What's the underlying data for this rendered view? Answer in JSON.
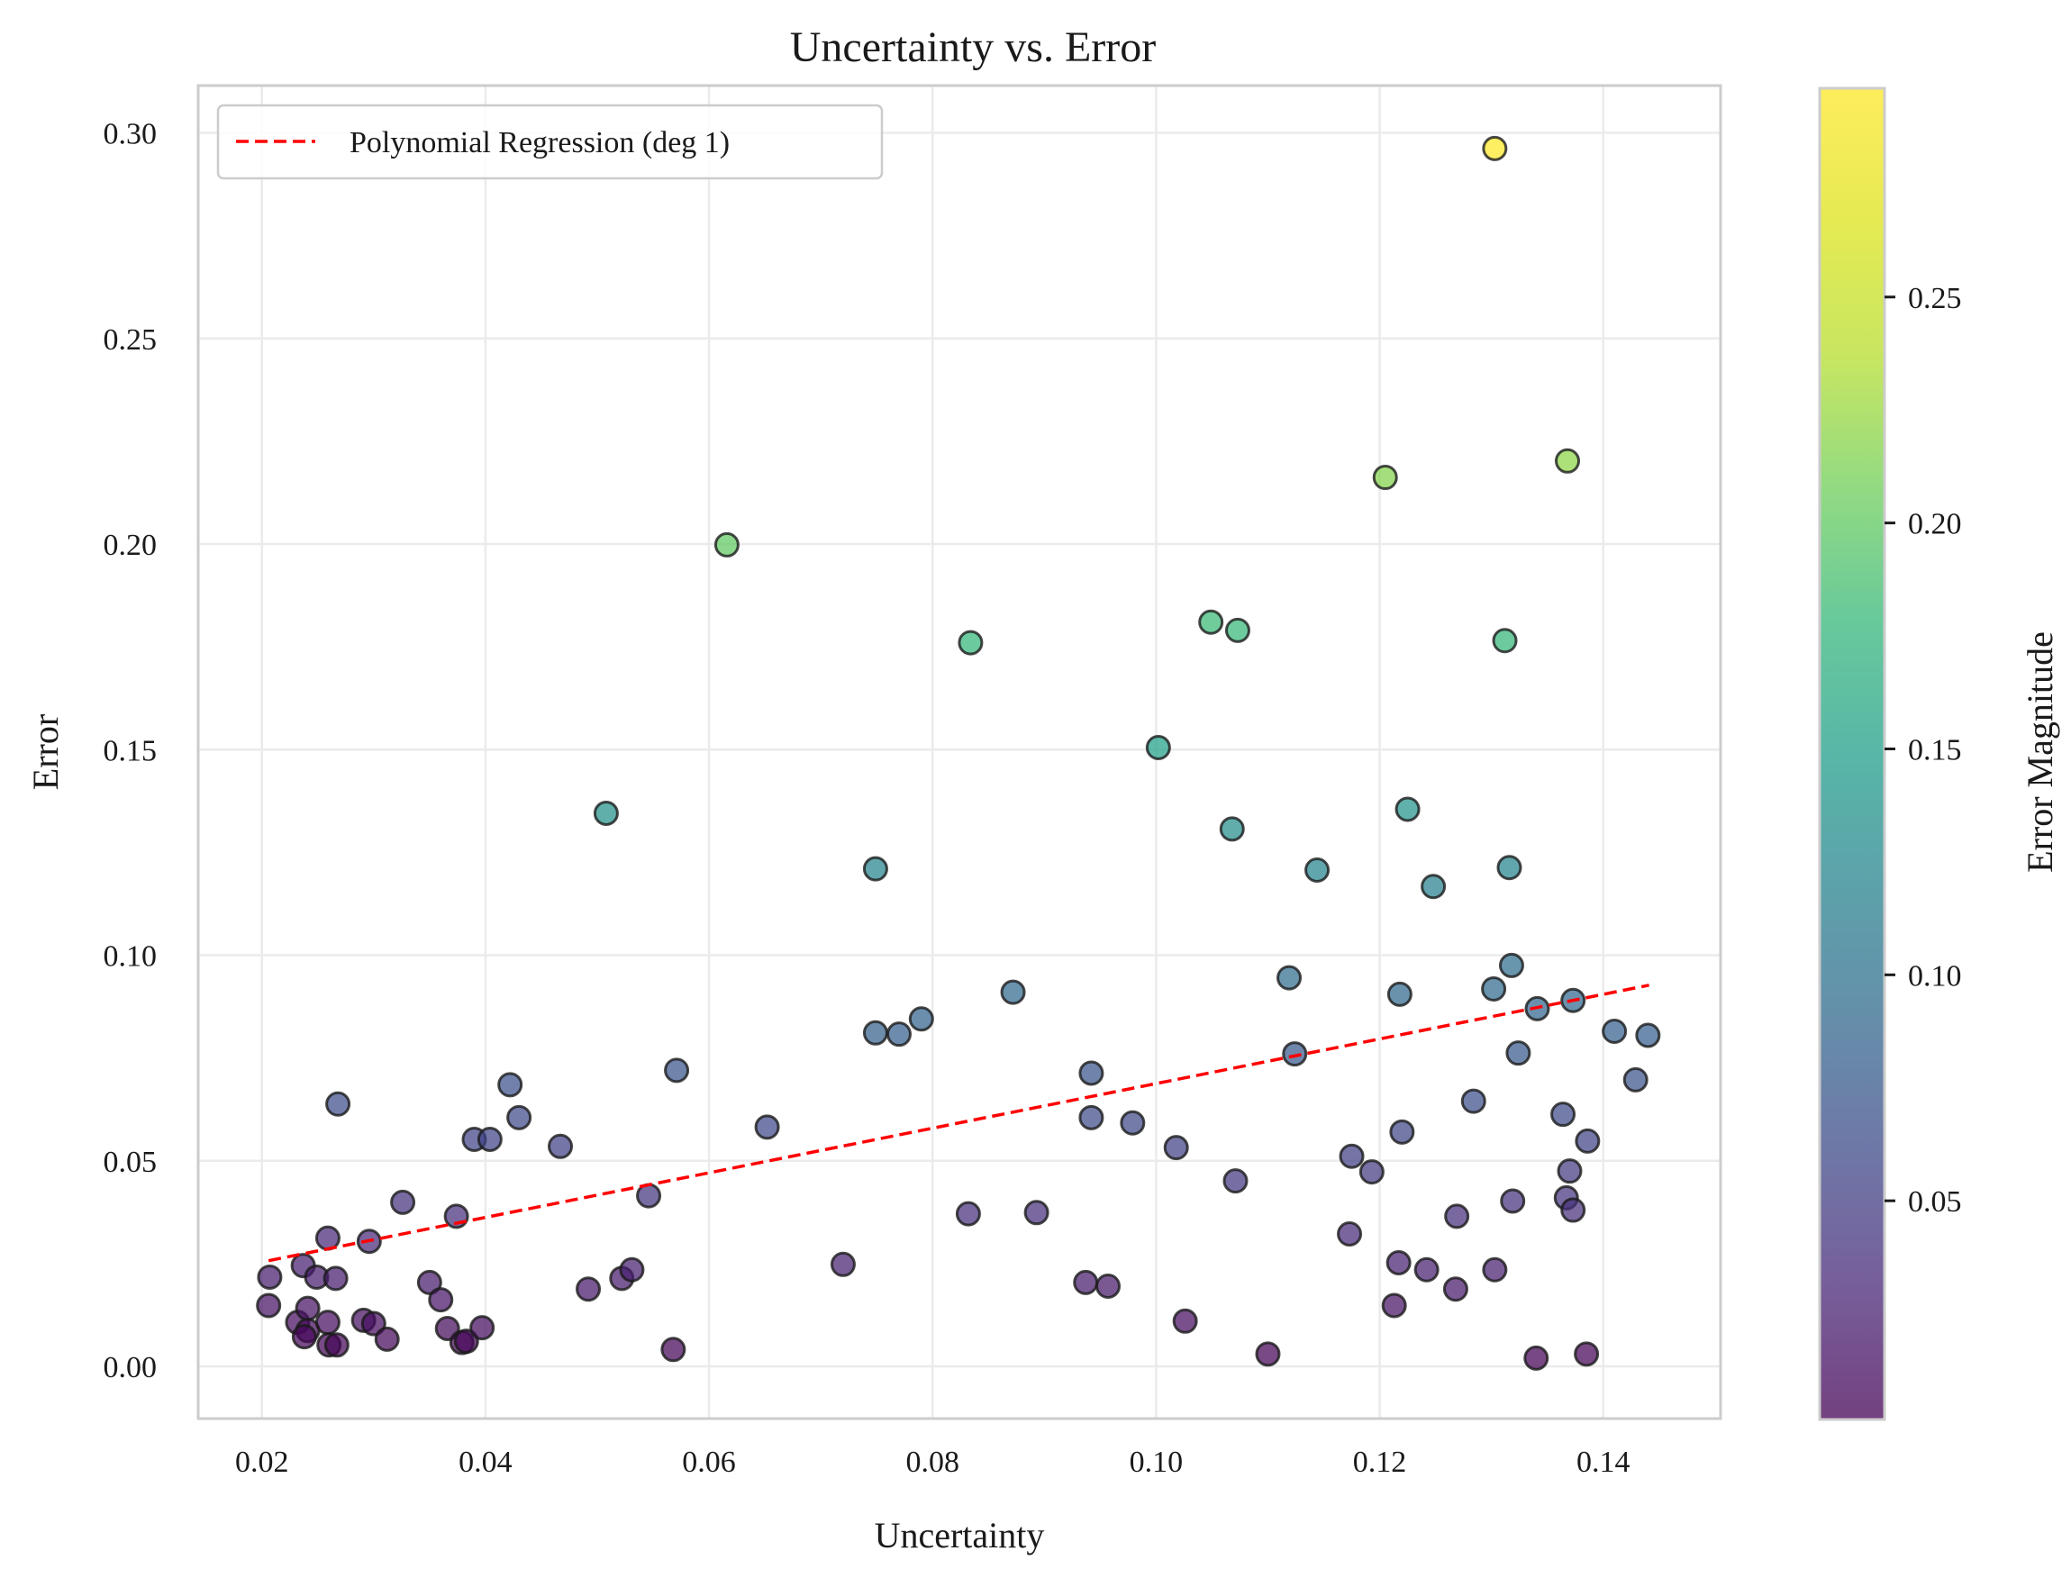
{
  "chart_data": {
    "type": "scatter",
    "title": "Uncertainty vs. Error",
    "xlabel": "Uncertainty",
    "ylabel": "Error",
    "xlim": [
      0.0143,
      0.1505
    ],
    "ylim": [
      -0.0127,
      0.3115
    ],
    "xticks": [
      0.02,
      0.04,
      0.06,
      0.08,
      0.1,
      0.12,
      0.14
    ],
    "xtick_labels": [
      "0.02",
      "0.04",
      "0.06",
      "0.08",
      "0.10",
      "0.12",
      "0.14"
    ],
    "yticks": [
      0.0,
      0.05,
      0.1,
      0.15,
      0.2,
      0.25,
      0.3
    ],
    "ytick_labels": [
      "0.00",
      "0.05",
      "0.10",
      "0.15",
      "0.20",
      "0.25",
      "0.30"
    ],
    "grid": true,
    "legend": {
      "placement": "top-left",
      "entries": [
        "Polynomial Regression (deg 1)"
      ]
    },
    "regression": {
      "x": [
        0.0206,
        0.1441
      ],
      "y": [
        0.0257,
        0.0927
      ],
      "color": "#ff0000",
      "style": "dashed"
    },
    "colorbar": {
      "label": "Error Magnitude",
      "range": [
        0.0016,
        0.2962
      ],
      "ticks": [
        0.05,
        0.1,
        0.15,
        0.2,
        0.25
      ],
      "tick_labels": [
        "0.05",
        "0.10",
        "0.15",
        "0.20",
        "0.25"
      ],
      "colormap": "viridis"
    },
    "points": [
      {
        "x": 0.0207,
        "y": 0.0217
      },
      {
        "x": 0.0206,
        "y": 0.0148
      },
      {
        "x": 0.0232,
        "y": 0.0107
      },
      {
        "x": 0.0237,
        "y": 0.0245
      },
      {
        "x": 0.0241,
        "y": 0.0141
      },
      {
        "x": 0.0249,
        "y": 0.0217
      },
      {
        "x": 0.0241,
        "y": 0.0087
      },
      {
        "x": 0.0238,
        "y": 0.0072
      },
      {
        "x": 0.0259,
        "y": 0.0107
      },
      {
        "x": 0.0259,
        "y": 0.0312
      },
      {
        "x": 0.0266,
        "y": 0.0214
      },
      {
        "x": 0.026,
        "y": 0.0052
      },
      {
        "x": 0.0267,
        "y": 0.0052
      },
      {
        "x": 0.0268,
        "y": 0.0638
      },
      {
        "x": 0.0291,
        "y": 0.0112
      },
      {
        "x": 0.0296,
        "y": 0.0304
      },
      {
        "x": 0.03,
        "y": 0.0104
      },
      {
        "x": 0.0312,
        "y": 0.0066
      },
      {
        "x": 0.0326,
        "y": 0.0399
      },
      {
        "x": 0.035,
        "y": 0.0204
      },
      {
        "x": 0.036,
        "y": 0.0162
      },
      {
        "x": 0.0366,
        "y": 0.0092
      },
      {
        "x": 0.0374,
        "y": 0.0365
      },
      {
        "x": 0.0379,
        "y": 0.0058
      },
      {
        "x": 0.0383,
        "y": 0.0061
      },
      {
        "x": 0.039,
        "y": 0.0552
      },
      {
        "x": 0.0397,
        "y": 0.0094
      },
      {
        "x": 0.0404,
        "y": 0.0552
      },
      {
        "x": 0.0422,
        "y": 0.0685
      },
      {
        "x": 0.043,
        "y": 0.0605
      },
      {
        "x": 0.0467,
        "y": 0.0535
      },
      {
        "x": 0.0492,
        "y": 0.0188
      },
      {
        "x": 0.0508,
        "y": 0.1345
      },
      {
        "x": 0.0522,
        "y": 0.0214
      },
      {
        "x": 0.0531,
        "y": 0.0235
      },
      {
        "x": 0.0546,
        "y": 0.0415
      },
      {
        "x": 0.0568,
        "y": 0.0041
      },
      {
        "x": 0.0571,
        "y": 0.072
      },
      {
        "x": 0.0616,
        "y": 0.1998
      },
      {
        "x": 0.0652,
        "y": 0.0582
      },
      {
        "x": 0.072,
        "y": 0.0248
      },
      {
        "x": 0.0749,
        "y": 0.121
      },
      {
        "x": 0.0749,
        "y": 0.0811
      },
      {
        "x": 0.077,
        "y": 0.0808
      },
      {
        "x": 0.079,
        "y": 0.0845
      },
      {
        "x": 0.0832,
        "y": 0.0371
      },
      {
        "x": 0.0834,
        "y": 0.176
      },
      {
        "x": 0.0872,
        "y": 0.091
      },
      {
        "x": 0.0893,
        "y": 0.0374
      },
      {
        "x": 0.0937,
        "y": 0.0204
      },
      {
        "x": 0.0942,
        "y": 0.0713
      },
      {
        "x": 0.0942,
        "y": 0.0605
      },
      {
        "x": 0.0957,
        "y": 0.0195
      },
      {
        "x": 0.0979,
        "y": 0.0592
      },
      {
        "x": 0.1002,
        "y": 0.1505
      },
      {
        "x": 0.1018,
        "y": 0.0532
      },
      {
        "x": 0.1026,
        "y": 0.011
      },
      {
        "x": 0.1049,
        "y": 0.181
      },
      {
        "x": 0.1068,
        "y": 0.1307
      },
      {
        "x": 0.1071,
        "y": 0.0451
      },
      {
        "x": 0.1073,
        "y": 0.179
      },
      {
        "x": 0.11,
        "y": 0.003
      },
      {
        "x": 0.1119,
        "y": 0.0945
      },
      {
        "x": 0.1124,
        "y": 0.076
      },
      {
        "x": 0.1144,
        "y": 0.1207
      },
      {
        "x": 0.1173,
        "y": 0.0322
      },
      {
        "x": 0.1175,
        "y": 0.0511
      },
      {
        "x": 0.1193,
        "y": 0.0473
      },
      {
        "x": 0.1205,
        "y": 0.2162
      },
      {
        "x": 0.1213,
        "y": 0.0148
      },
      {
        "x": 0.1217,
        "y": 0.0252
      },
      {
        "x": 0.1218,
        "y": 0.0905
      },
      {
        "x": 0.122,
        "y": 0.057
      },
      {
        "x": 0.1225,
        "y": 0.1355
      },
      {
        "x": 0.1242,
        "y": 0.0235
      },
      {
        "x": 0.1248,
        "y": 0.1167
      },
      {
        "x": 0.1268,
        "y": 0.0188
      },
      {
        "x": 0.1269,
        "y": 0.0365
      },
      {
        "x": 0.1284,
        "y": 0.0645
      },
      {
        "x": 0.1302,
        "y": 0.0918
      },
      {
        "x": 0.1303,
        "y": 0.2962
      },
      {
        "x": 0.1303,
        "y": 0.0235
      },
      {
        "x": 0.1312,
        "y": 0.1765
      },
      {
        "x": 0.1316,
        "y": 0.1213
      },
      {
        "x": 0.1318,
        "y": 0.0975
      },
      {
        "x": 0.1319,
        "y": 0.0402
      },
      {
        "x": 0.1324,
        "y": 0.0762
      },
      {
        "x": 0.134,
        "y": 0.002
      },
      {
        "x": 0.1341,
        "y": 0.087
      },
      {
        "x": 0.1364,
        "y": 0.0613
      },
      {
        "x": 0.1367,
        "y": 0.041
      },
      {
        "x": 0.1368,
        "y": 0.2202
      },
      {
        "x": 0.137,
        "y": 0.0475
      },
      {
        "x": 0.1373,
        "y": 0.089
      },
      {
        "x": 0.1373,
        "y": 0.038
      },
      {
        "x": 0.1385,
        "y": 0.003
      },
      {
        "x": 0.1386,
        "y": 0.0548
      },
      {
        "x": 0.141,
        "y": 0.0815
      },
      {
        "x": 0.1429,
        "y": 0.0697
      },
      {
        "x": 0.144,
        "y": 0.0805
      }
    ]
  }
}
